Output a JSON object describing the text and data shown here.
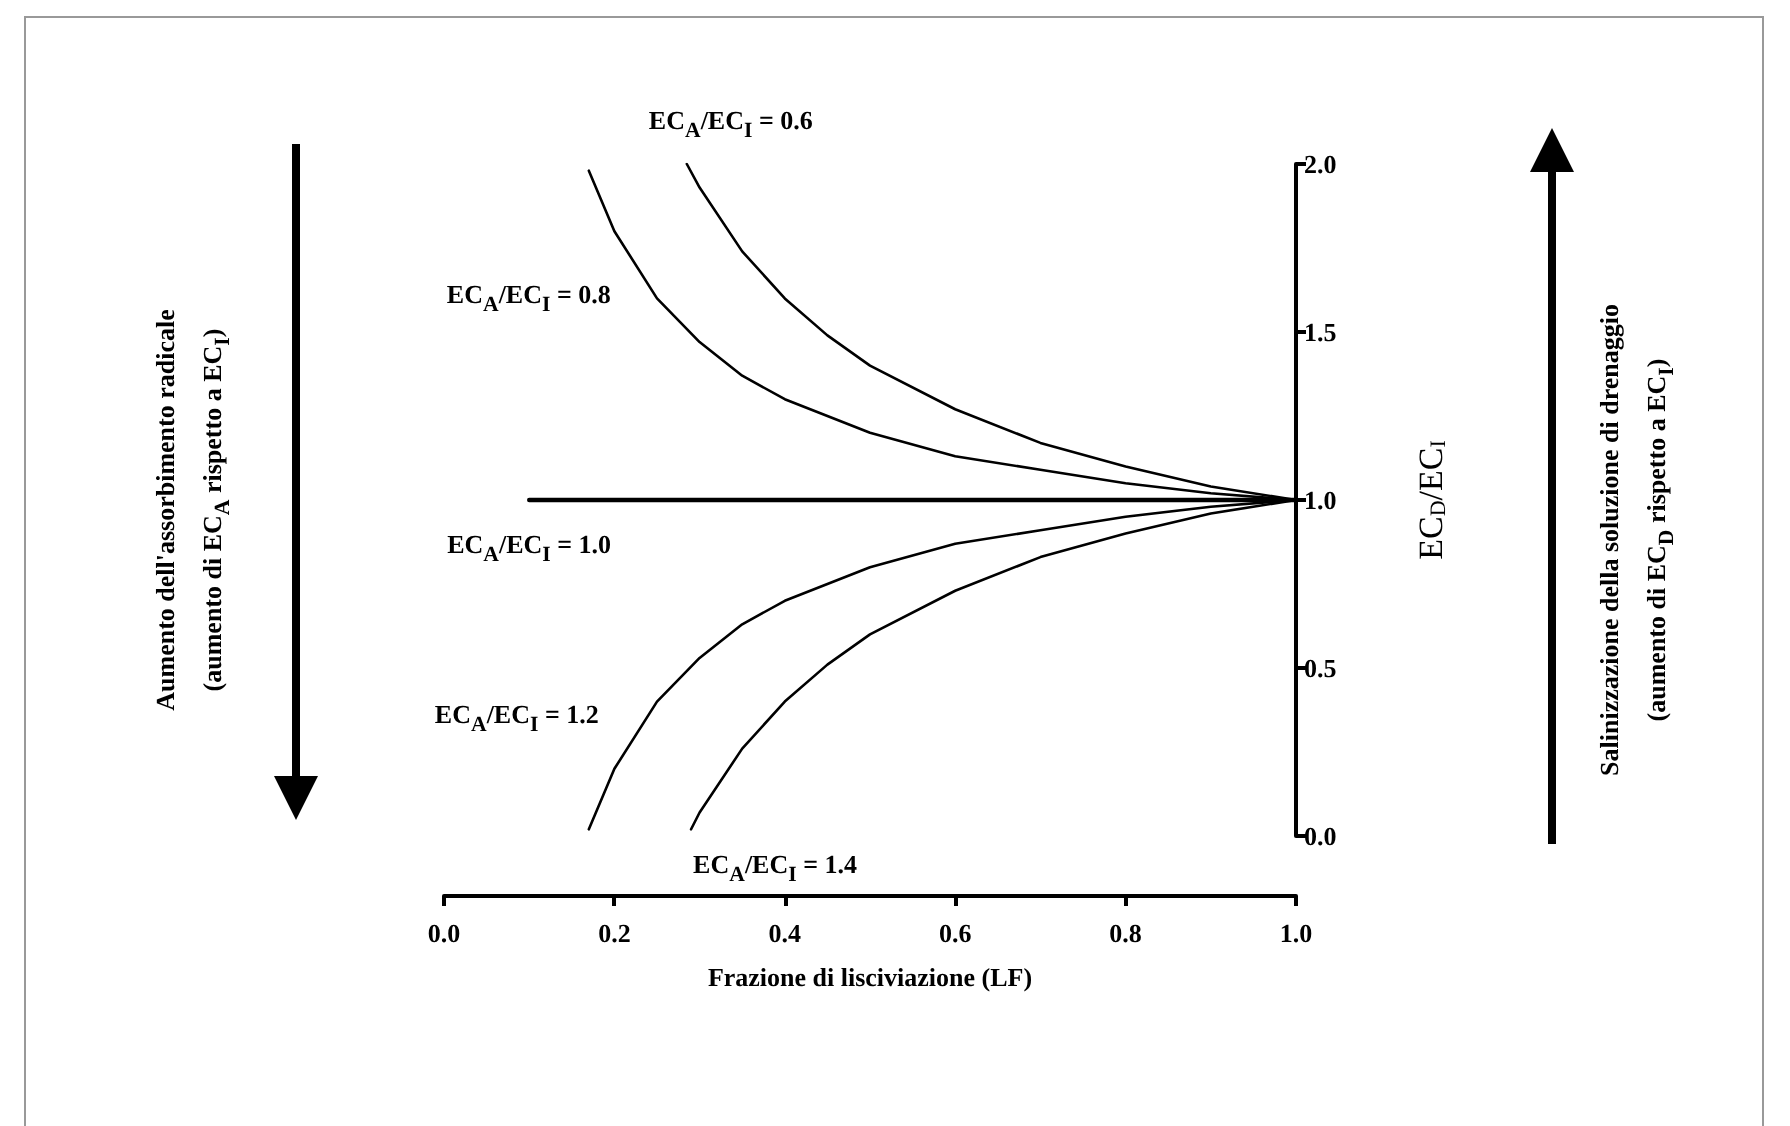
{
  "chart_data": {
    "type": "line",
    "xlabel": "Frazione di lisciviazione (LF)",
    "ylabel": "EC$_{D}$/EC$_{I}$",
    "xlim": [
      0,
      1
    ],
    "ylim": [
      0,
      2
    ],
    "xticks": [
      {
        "value": 0,
        "label": "0.0"
      },
      {
        "value": 0.2,
        "label": "0.2"
      },
      {
        "value": 0.4,
        "label": "0.4"
      },
      {
        "value": 0.6,
        "label": "0.6"
      },
      {
        "value": 0.8,
        "label": "0.8"
      },
      {
        "value": 1,
        "label": "1.0"
      }
    ],
    "yticks": [
      {
        "value": 0,
        "label": "0.0"
      },
      {
        "value": 0.5,
        "label": "0.5"
      },
      {
        "value": 1,
        "label": "1.0"
      },
      {
        "value": 1.5,
        "label": "1.5"
      },
      {
        "value": 2,
        "label": "2.0"
      }
    ],
    "grid": false,
    "legend": false,
    "marker": "none",
    "line_style": "solid",
    "series": [
      {
        "name": "EC$_{A}$/EC$_{I}$ = 0.6",
        "color": "#000000",
        "x": [
          0.285,
          0.3,
          0.35,
          0.4,
          0.45,
          0.5,
          0.6,
          0.7,
          0.8,
          0.9,
          1.0
        ],
        "values": [
          2.0,
          1.93,
          1.74,
          1.6,
          1.49,
          1.4,
          1.27,
          1.17,
          1.1,
          1.04,
          1.0
        ]
      },
      {
        "name": "EC$_{A}$/EC$_{I}$ = 0.8",
        "color": "#000000",
        "x": [
          0.17,
          0.2,
          0.25,
          0.3,
          0.35,
          0.4,
          0.5,
          0.6,
          0.7,
          0.8,
          0.9,
          1.0
        ],
        "values": [
          1.98,
          1.8,
          1.6,
          1.47,
          1.37,
          1.3,
          1.2,
          1.13,
          1.09,
          1.05,
          1.02,
          1.0
        ]
      },
      {
        "name": "EC$_{A}$/EC$_{I}$ = 1.0",
        "color": "#000000",
        "x": [
          0.1,
          1.0
        ],
        "values": [
          1.0,
          1.0
        ]
      },
      {
        "name": "EC$_{A}$/EC$_{I}$ = 1.2",
        "color": "#000000",
        "x": [
          0.17,
          0.2,
          0.25,
          0.3,
          0.35,
          0.4,
          0.5,
          0.6,
          0.7,
          0.8,
          0.9,
          1.0
        ],
        "values": [
          0.02,
          0.2,
          0.4,
          0.53,
          0.63,
          0.7,
          0.8,
          0.87,
          0.91,
          0.95,
          0.98,
          1.0
        ]
      },
      {
        "name": "EC$_{A}$/EC$_{I}$ = 1.4",
        "color": "#000000",
        "x": [
          0.29,
          0.3,
          0.35,
          0.4,
          0.45,
          0.5,
          0.6,
          0.7,
          0.8,
          0.9,
          1.0
        ],
        "values": [
          0.02,
          0.07,
          0.26,
          0.4,
          0.51,
          0.6,
          0.73,
          0.83,
          0.9,
          0.96,
          1.0
        ]
      }
    ],
    "annotations": [
      "Aumento dell'assorbimento radicale",
      "(aumento di EC$_{A}$ rispetto a EC$_{I}$)",
      "Salinizzazione della soluzione di drenaggio",
      "(aumento di EC$_{D}$ rispetto a EC$_{I}$)"
    ]
  }
}
